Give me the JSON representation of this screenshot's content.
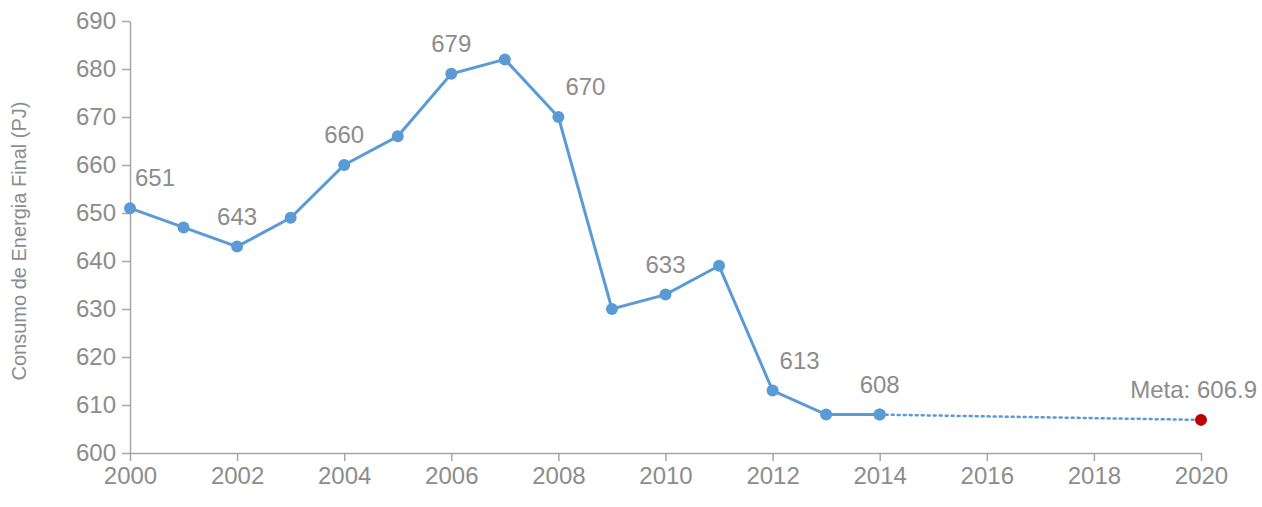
{
  "chart_data": {
    "type": "line",
    "y_label": "Consumo de Energia Final (PJ)",
    "xlim": [
      2000,
      2020
    ],
    "xticks": [
      2000,
      2002,
      2004,
      2006,
      2008,
      2010,
      2012,
      2014,
      2016,
      2018,
      2020
    ],
    "ylim": [
      600,
      690
    ],
    "yticks": [
      600,
      610,
      620,
      630,
      640,
      650,
      660,
      670,
      680,
      690
    ],
    "grid": false,
    "data_labels": true,
    "series": [
      {
        "color": "#5b9bd5",
        "marker": "circle",
        "line_style": "solid",
        "x": [
          2000,
          2001,
          2002,
          2003,
          2004,
          2005,
          2006,
          2007,
          2008,
          2009,
          2010,
          2011,
          2012,
          2013,
          2014
        ],
        "values": [
          651,
          647,
          643,
          649,
          660,
          666,
          679,
          682,
          670,
          630,
          633,
          639,
          613,
          608,
          608
        ],
        "value_labels": [
          "651",
          null,
          "643",
          null,
          "660",
          null,
          "679",
          null,
          "670",
          null,
          "633",
          null,
          "613",
          null,
          "608"
        ]
      },
      {
        "color": "#5b9bd5",
        "colors": [
          "#5b9bd5",
          "#c00000"
        ],
        "marker": "circle",
        "line_style": "dotted",
        "x": [
          2014,
          2020
        ],
        "values": [
          608,
          606.9
        ],
        "value_labels": [
          null,
          "Meta: 606.9"
        ]
      }
    ]
  }
}
